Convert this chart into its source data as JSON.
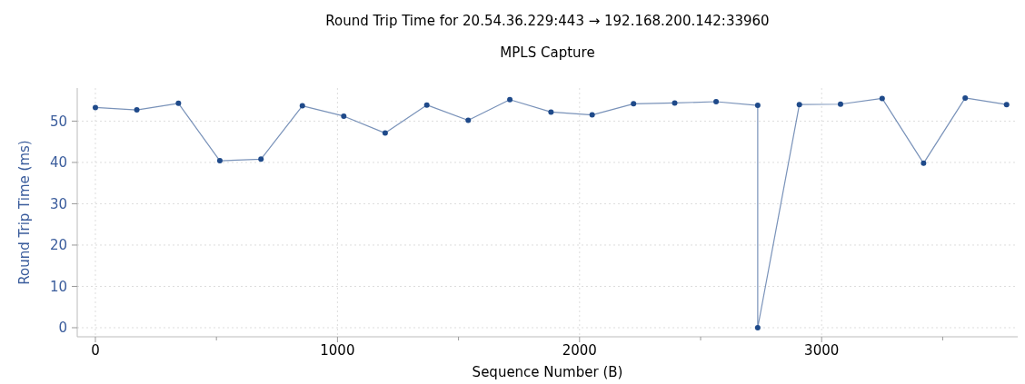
{
  "chart_data": {
    "type": "line",
    "title": "Round Trip Time for 20.54.36.229:443 → 192.168.200.142:33960",
    "subtitle": "MPLS Capture",
    "xlabel": "Sequence Number (B)",
    "ylabel": "Round Trip Time (ms)",
    "series": [
      {
        "color": "#1f4a8a",
        "x": [
          0,
          171,
          343,
          514,
          684,
          855,
          1026,
          1197,
          1369,
          1540,
          1712,
          1882,
          2052,
          2223,
          2393,
          2564,
          2736,
          2736,
          2908,
          3078,
          3250,
          3421,
          3593,
          3764
        ],
        "values": [
          53.3,
          52.7,
          54.3,
          40.4,
          40.8,
          53.7,
          51.2,
          47.1,
          53.9,
          50.2,
          55.2,
          52.2,
          51.5,
          54.2,
          54.4,
          54.7,
          53.8,
          0,
          54.0,
          54.1,
          55.5,
          39.8,
          55.6,
          54.0
        ]
      }
    ],
    "xlim": [
      -75,
      3810
    ],
    "xticks": [
      0,
      {
        "value": 500,
        "label": null
      },
      1000,
      {
        "value": 1500,
        "label": null
      },
      2000,
      {
        "value": 2500,
        "label": null
      },
      3000,
      {
        "value": 3500,
        "label": null
      }
    ],
    "ylim": [
      -2.2,
      58
    ],
    "yticks": [
      0,
      10,
      20,
      30,
      40,
      50
    ],
    "grid": true,
    "marker": "circle",
    "line_style": "solid"
  }
}
